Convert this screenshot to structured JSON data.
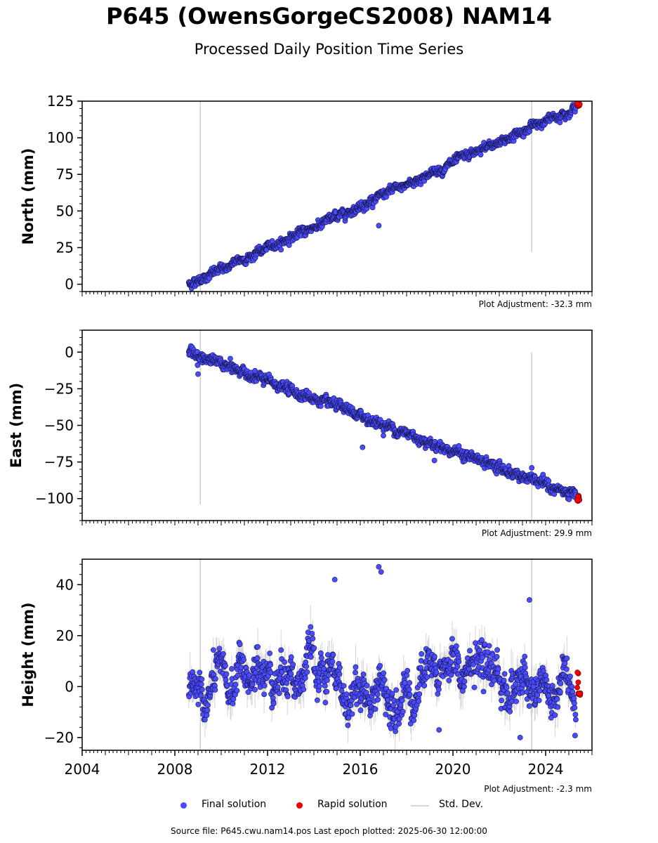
{
  "title": "P645 (OwensGorgeCS2008) NAM14",
  "subtitle": "Processed Daily Position Time Series",
  "footer": "Source file: P645.cwu.nam14.pos  Last epoch plotted: 2025-06-30 12:00:00",
  "legend": {
    "final": "Final solution",
    "rapid": "Rapid solution",
    "std": "Std. Dev."
  },
  "colors": {
    "final": "#4b4bff",
    "rapid": "#ff0000",
    "std": "#bdbdbd"
  },
  "chart_data": [
    {
      "type": "scatter",
      "ylabel": "North (mm)",
      "adjustment": "Plot Adjustment: -32.3 mm",
      "xlim": [
        2004,
        2026
      ],
      "ylim": [
        -5,
        125
      ],
      "yticks": [
        0,
        25,
        50,
        75,
        100,
        125
      ],
      "start": 2008.6,
      "start_value": 0,
      "trend_per_year": 7.25,
      "noise_sd": 1.3,
      "series": [
        {
          "name": "Final solution",
          "x_range": [
            2008.6,
            2025.3
          ],
          "y_range": [
            0,
            122
          ]
        },
        {
          "name": "Rapid solution",
          "x_range": [
            2025.35,
            2025.5
          ],
          "y_range": [
            121,
            124
          ]
        }
      ],
      "outliers": [
        [
          2016.8,
          40
        ]
      ],
      "vertical_lines": [
        {
          "x": 2009.1,
          "y_range": [
            -5,
            125
          ]
        },
        {
          "x": 2023.4,
          "y_range": [
            22,
            125
          ]
        }
      ]
    },
    {
      "type": "scatter",
      "ylabel": "East (mm)",
      "adjustment": "Plot Adjustment: 29.9 mm",
      "xlim": [
        2004,
        2026
      ],
      "ylim": [
        -115,
        15
      ],
      "yticks": [
        "−100",
        "−75",
        "−50",
        "−25",
        "0"
      ],
      "ytick_values": [
        -100,
        -75,
        -50,
        -25,
        0
      ],
      "start": 2008.6,
      "start_value": 0,
      "trend_per_year": -5.9,
      "noise_sd": 1.6,
      "series": [
        {
          "name": "Final solution",
          "x_range": [
            2008.6,
            2025.3
          ],
          "y_range": [
            -102,
            0
          ]
        },
        {
          "name": "Rapid solution",
          "x_range": [
            2025.35,
            2025.5
          ],
          "y_range": [
            -102,
            -98
          ]
        }
      ],
      "outliers": [
        [
          2009.0,
          -15
        ],
        [
          2016.1,
          -65
        ],
        [
          2017.0,
          -57
        ],
        [
          2023.4,
          -79
        ],
        [
          2019.2,
          -74
        ]
      ],
      "vertical_lines": [
        {
          "x": 2009.1,
          "y_range": [
            -104,
            15
          ]
        },
        {
          "x": 2023.4,
          "y_range": [
            -115,
            0
          ]
        }
      ]
    },
    {
      "type": "scatter",
      "ylabel": "Height (mm)",
      "adjustment": "Plot Adjustment: -2.3 mm",
      "xlim": [
        2004,
        2026
      ],
      "ylim": [
        -25,
        50
      ],
      "yticks": [
        "−20",
        "0",
        "20",
        "40"
      ],
      "ytick_values": [
        -20,
        0,
        20,
        40
      ],
      "xticks": [
        "2004",
        "2008",
        "2012",
        "2016",
        "2020",
        "2024"
      ],
      "xtick_values": [
        2004,
        2008,
        2012,
        2016,
        2020,
        2024
      ],
      "start": 2008.6,
      "start_value": 2,
      "trend_per_year": 0,
      "noise_sd": 5.5,
      "series": [
        {
          "name": "Final solution",
          "x_range": [
            2008.6,
            2025.3
          ],
          "y_range": [
            -21,
            47
          ]
        },
        {
          "name": "Rapid solution",
          "x_range": [
            2025.35,
            2025.5
          ],
          "y_range": [
            -4,
            9
          ]
        }
      ],
      "outliers": [
        [
          2014.9,
          42
        ],
        [
          2016.8,
          47
        ],
        [
          2016.9,
          45
        ],
        [
          2023.3,
          34
        ],
        [
          2022.9,
          -20
        ],
        [
          2019.4,
          -17
        ]
      ],
      "vertical_lines": [
        {
          "x": 2009.1,
          "y_range": [
            -25,
            50
          ]
        },
        {
          "x": 2023.4,
          "y_range": [
            -25,
            50
          ]
        }
      ]
    }
  ]
}
